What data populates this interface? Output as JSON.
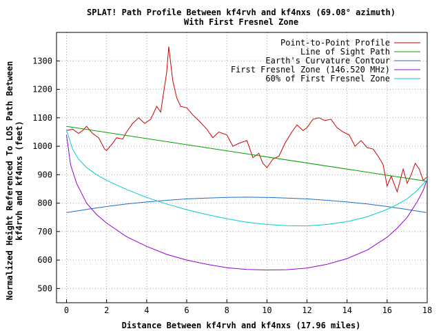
{
  "chart_data": {
    "type": "line",
    "title": "SPLAT! Path Profile Between kf4rvh and kf4nxs (69.08° azimuth)",
    "subtitle": "With First Fresnel Zone",
    "xlabel": "Distance Between kf4rvh and kf4nxs (17.96 miles)",
    "ylabel": "Normalized Height Referenced To LOS Path Between",
    "ylabel2": "kf4rvh and kf4nxs (feet)",
    "xlim": [
      -0.5,
      18
    ],
    "ylim": [
      450,
      1400
    ],
    "x_ticks": [
      0,
      2,
      4,
      6,
      8,
      10,
      12,
      14,
      16,
      18
    ],
    "y_ticks": [
      500,
      600,
      700,
      800,
      900,
      1000,
      1100,
      1200,
      1300
    ],
    "grid": true,
    "legend_position": "top-right",
    "colors": {
      "profile": "#cc0000",
      "los": "#00a000",
      "earth": "#1a6fc4",
      "fresnel": "#9400d3",
      "fresnel60": "#00cccc"
    },
    "series": [
      {
        "name": "Point-to-Point Profile",
        "color": "#cc0000",
        "x": [
          0,
          0.3,
          0.6,
          0.8,
          1.0,
          1.3,
          1.6,
          1.9,
          2.0,
          2.3,
          2.5,
          2.8,
          3.0,
          3.3,
          3.6,
          3.9,
          4.2,
          4.5,
          4.7,
          5.0,
          5.1,
          5.3,
          5.5,
          5.7,
          6.0,
          6.3,
          6.6,
          7.0,
          7.3,
          7.6,
          8.0,
          8.3,
          8.6,
          9.0,
          9.3,
          9.6,
          9.8,
          10.0,
          10.3,
          10.6,
          10.9,
          11.2,
          11.5,
          11.8,
          12.0,
          12.3,
          12.6,
          12.9,
          13.2,
          13.5,
          13.8,
          14.1,
          14.4,
          14.7,
          15.0,
          15.3,
          15.6,
          15.8,
          16.0,
          16.2,
          16.5,
          16.8,
          17.0,
          17.2,
          17.4,
          17.6,
          17.8,
          17.96
        ],
        "values": [
          1055,
          1060,
          1045,
          1055,
          1070,
          1045,
          1030,
          990,
          985,
          1010,
          1030,
          1025,
          1050,
          1080,
          1100,
          1080,
          1095,
          1140,
          1120,
          1260,
          1350,
          1230,
          1170,
          1140,
          1135,
          1110,
          1090,
          1060,
          1030,
          1050,
          1040,
          1000,
          1010,
          1020,
          960,
          975,
          940,
          925,
          955,
          965,
          1010,
          1045,
          1075,
          1055,
          1065,
          1095,
          1100,
          1090,
          1095,
          1065,
          1050,
          1040,
          1000,
          1020,
          995,
          990,
          960,
          935,
          860,
          895,
          840,
          920,
          870,
          900,
          940,
          920,
          880,
          890
        ]
      },
      {
        "name": "Line of Sight Path",
        "color": "#00a000",
        "x": [
          0,
          17.96
        ],
        "values": [
          1070,
          877
        ]
      },
      {
        "name": "Earth's Curvature Contour",
        "color": "#1a6fc4",
        "x": [
          0,
          1,
          2,
          3,
          4,
          5,
          6,
          7,
          8,
          9,
          10,
          11,
          12,
          13,
          14,
          15,
          16,
          17,
          17.96
        ],
        "values": [
          767,
          778,
          788,
          797,
          804,
          810,
          815,
          818,
          820,
          821,
          820,
          818,
          815,
          810,
          804,
          797,
          788,
          778,
          767
        ]
      },
      {
        "name": "First Fresnel Zone (146.520 MHz)",
        "color": "#9400d3",
        "x": [
          0,
          0.2,
          0.5,
          1,
          1.5,
          2,
          3,
          4,
          5,
          6,
          7,
          8,
          9,
          10,
          11,
          12,
          13,
          14,
          15,
          16,
          16.5,
          17,
          17.5,
          17.8,
          17.96
        ],
        "values": [
          1040,
          935,
          870,
          800,
          760,
          730,
          682,
          648,
          620,
          600,
          585,
          573,
          567,
          565,
          566,
          572,
          585,
          605,
          635,
          680,
          712,
          750,
          805,
          845,
          877
        ]
      },
      {
        "name": "60% of First Fresnel Zone",
        "color": "#00cccc",
        "x": [
          0,
          0.3,
          0.6,
          1,
          1.5,
          2,
          3,
          4,
          5,
          6,
          7,
          8,
          9,
          10,
          11,
          12,
          13,
          14,
          15,
          16,
          16.5,
          17,
          17.5,
          17.96
        ],
        "values": [
          1057,
          990,
          955,
          925,
          900,
          880,
          848,
          820,
          797,
          777,
          760,
          745,
          733,
          725,
          721,
          720,
          725,
          735,
          752,
          778,
          795,
          815,
          845,
          880
        ]
      }
    ]
  }
}
